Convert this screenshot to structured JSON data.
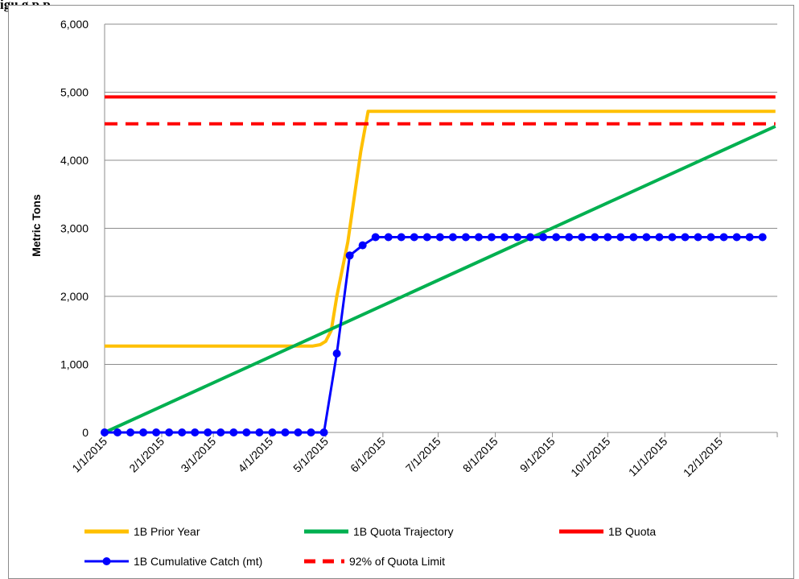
{
  "caption": "igu                                      g     p     p",
  "chart_data": {
    "type": "line",
    "title": "",
    "xlabel": "",
    "ylabel": "Metric Tons",
    "ylim": [
      0,
      6000
    ],
    "yticks": [
      0,
      1000,
      2000,
      3000,
      4000,
      5000,
      6000
    ],
    "ytick_labels": [
      "0",
      "1,000",
      "2,000",
      "3,000",
      "4,000",
      "5,000",
      "6,000"
    ],
    "xlim": [
      "2015-01-01",
      "2016-01-01"
    ],
    "xtick_labels": [
      "1/1/2015",
      "2/1/2015",
      "3/1/2015",
      "4/1/2015",
      "5/1/2015",
      "6/1/2015",
      "7/1/2015",
      "8/1/2015",
      "9/1/2015",
      "10/1/2015",
      "11/1/2015",
      "12/1/2015"
    ],
    "grid": "horizontal",
    "legend_position": "bottom",
    "series": [
      {
        "name": "1B Prior Year",
        "color": "#ffc000",
        "style": "solid",
        "marker": "none",
        "points": [
          [
            "2015-01-01",
            1270
          ],
          [
            "2015-04-24",
            1270
          ],
          [
            "2015-04-28",
            1290
          ],
          [
            "2015-05-01",
            1340
          ],
          [
            "2015-05-04",
            1500
          ],
          [
            "2015-05-07",
            2000
          ],
          [
            "2015-05-13",
            2800
          ],
          [
            "2015-05-20",
            4130
          ],
          [
            "2015-05-24",
            4720
          ],
          [
            "2015-12-31",
            4720
          ]
        ]
      },
      {
        "name": "1B Quota Trajectory",
        "color": "#00b050",
        "style": "solid",
        "marker": "none",
        "points": [
          [
            "2015-01-01",
            0
          ],
          [
            "2015-12-31",
            4500
          ]
        ]
      },
      {
        "name": "1B Quota",
        "color": "#ff0000",
        "style": "solid",
        "marker": "none",
        "points": [
          [
            "2015-01-01",
            4930
          ],
          [
            "2015-12-31",
            4930
          ]
        ]
      },
      {
        "name": "1B Cumulative Catch (mt)",
        "color": "#0000ff",
        "style": "solid",
        "marker": "circle",
        "points": [
          [
            "2015-01-01",
            0
          ],
          [
            "2015-01-08",
            0
          ],
          [
            "2015-01-15",
            0
          ],
          [
            "2015-01-22",
            0
          ],
          [
            "2015-01-29",
            0
          ],
          [
            "2015-02-05",
            0
          ],
          [
            "2015-02-12",
            0
          ],
          [
            "2015-02-19",
            0
          ],
          [
            "2015-02-26",
            0
          ],
          [
            "2015-03-05",
            0
          ],
          [
            "2015-03-12",
            0
          ],
          [
            "2015-03-19",
            0
          ],
          [
            "2015-03-26",
            0
          ],
          [
            "2015-04-02",
            0
          ],
          [
            "2015-04-09",
            0
          ],
          [
            "2015-04-16",
            0
          ],
          [
            "2015-04-23",
            0
          ],
          [
            "2015-04-30",
            0
          ],
          [
            "2015-05-07",
            1160
          ],
          [
            "2015-05-14",
            2600
          ],
          [
            "2015-05-21",
            2750
          ],
          [
            "2015-05-28",
            2870
          ],
          [
            "2015-06-04",
            2870
          ],
          [
            "2015-06-11",
            2870
          ],
          [
            "2015-06-18",
            2870
          ],
          [
            "2015-06-25",
            2870
          ],
          [
            "2015-07-02",
            2870
          ],
          [
            "2015-07-09",
            2870
          ],
          [
            "2015-07-16",
            2870
          ],
          [
            "2015-07-23",
            2870
          ],
          [
            "2015-07-30",
            2870
          ],
          [
            "2015-08-06",
            2870
          ],
          [
            "2015-08-13",
            2870
          ],
          [
            "2015-08-20",
            2870
          ],
          [
            "2015-08-27",
            2870
          ],
          [
            "2015-09-03",
            2870
          ],
          [
            "2015-09-10",
            2870
          ],
          [
            "2015-09-17",
            2870
          ],
          [
            "2015-09-24",
            2870
          ],
          [
            "2015-10-01",
            2870
          ],
          [
            "2015-10-08",
            2870
          ],
          [
            "2015-10-15",
            2870
          ],
          [
            "2015-10-22",
            2870
          ],
          [
            "2015-10-29",
            2870
          ],
          [
            "2015-11-05",
            2870
          ],
          [
            "2015-11-12",
            2870
          ],
          [
            "2015-11-19",
            2870
          ],
          [
            "2015-11-26",
            2870
          ],
          [
            "2015-12-03",
            2870
          ],
          [
            "2015-12-10",
            2870
          ],
          [
            "2015-12-17",
            2870
          ],
          [
            "2015-12-24",
            2870
          ]
        ]
      },
      {
        "name": "92% of Quota Limit",
        "color": "#ff0000",
        "style": "dashed",
        "marker": "none",
        "points": [
          [
            "2015-01-01",
            4536
          ],
          [
            "2015-12-31",
            4536
          ]
        ]
      }
    ]
  }
}
